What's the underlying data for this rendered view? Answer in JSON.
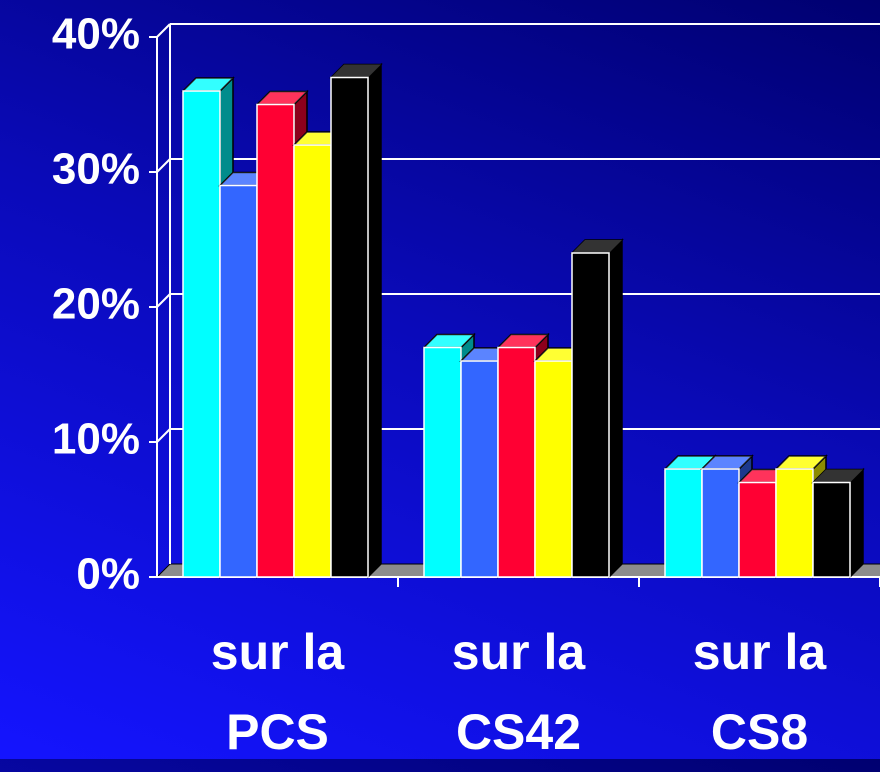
{
  "chart_data": {
    "type": "bar3d",
    "categories": [
      "sur la PCS",
      "sur la CS42",
      "sur la CS8"
    ],
    "series": [
      {
        "color": "#00ffff",
        "values": [
          36,
          17,
          8
        ]
      },
      {
        "color": "#3366ff",
        "values": [
          29,
          16,
          8
        ]
      },
      {
        "color": "#ff0033",
        "values": [
          35,
          17,
          7
        ]
      },
      {
        "color": "#ffff00",
        "values": [
          32,
          16,
          8
        ]
      },
      {
        "color": "#000000",
        "values": [
          37,
          24,
          7
        ]
      }
    ],
    "ylim": [
      0,
      40
    ],
    "yticks": [
      {
        "value": 0,
        "label": "0%"
      },
      {
        "value": 10,
        "label": "10%"
      },
      {
        "value": 20,
        "label": "20%"
      },
      {
        "value": 30,
        "label": "30%"
      },
      {
        "value": 40,
        "label": "40%"
      }
    ],
    "grid": true
  }
}
